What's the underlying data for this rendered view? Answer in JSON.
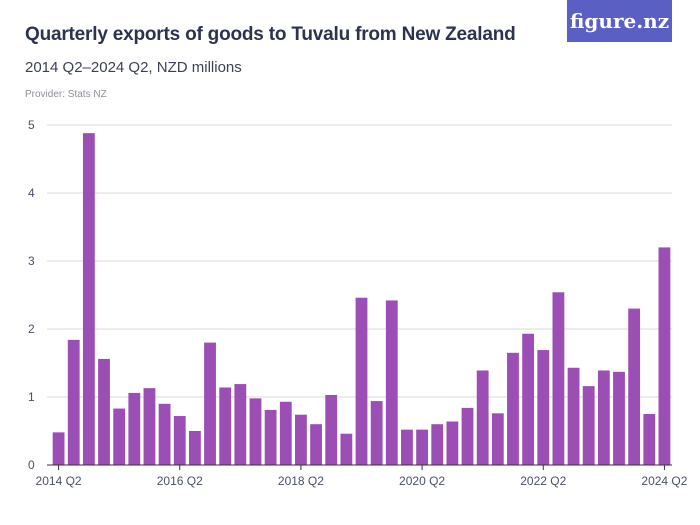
{
  "header": {
    "title": "Quarterly exports of goods to Tuvalu from New Zealand",
    "subtitle": "2014 Q2–2024 Q2, NZD millions",
    "provider": "Provider: Stats NZ",
    "logo_text": "figure.nz"
  },
  "colors": {
    "bar": "#9b4fb4",
    "logo_bg": "#5a5fc4",
    "grid": "#d9d9d9"
  },
  "chart_data": {
    "type": "bar",
    "x": [
      "2014 Q2",
      "2014 Q3",
      "2014 Q4",
      "2015 Q1",
      "2015 Q2",
      "2015 Q3",
      "2015 Q4",
      "2016 Q1",
      "2016 Q2",
      "2016 Q3",
      "2016 Q4",
      "2017 Q1",
      "2017 Q2",
      "2017 Q3",
      "2017 Q4",
      "2018 Q1",
      "2018 Q2",
      "2018 Q3",
      "2018 Q4",
      "2019 Q1",
      "2019 Q2",
      "2019 Q3",
      "2019 Q4",
      "2020 Q1",
      "2020 Q2",
      "2020 Q3",
      "2020 Q4",
      "2021 Q1",
      "2021 Q2",
      "2021 Q3",
      "2021 Q4",
      "2022 Q1",
      "2022 Q2",
      "2022 Q3",
      "2022 Q4",
      "2023 Q1",
      "2023 Q2",
      "2023 Q3",
      "2023 Q4",
      "2024 Q1",
      "2024 Q2"
    ],
    "values": [
      0.48,
      1.84,
      4.88,
      1.56,
      0.83,
      1.06,
      1.13,
      0.9,
      0.72,
      0.5,
      1.8,
      1.14,
      1.19,
      0.98,
      0.81,
      0.93,
      0.74,
      0.6,
      1.03,
      0.46,
      2.46,
      0.94,
      2.42,
      0.52,
      0.52,
      0.6,
      0.64,
      0.84,
      1.39,
      0.76,
      1.65,
      1.93,
      1.69,
      2.54,
      1.43,
      1.16,
      1.39,
      1.37,
      2.3,
      0.75,
      3.2
    ],
    "x_tick_labels": [
      "2014 Q2",
      "2016 Q2",
      "2018 Q2",
      "2020 Q2",
      "2022 Q2",
      "2024 Q2"
    ],
    "y_ticks": [
      0,
      1,
      2,
      3,
      4,
      5
    ],
    "ylim": [
      0,
      5
    ],
    "xlabel": "",
    "ylabel": "",
    "grid": true
  }
}
